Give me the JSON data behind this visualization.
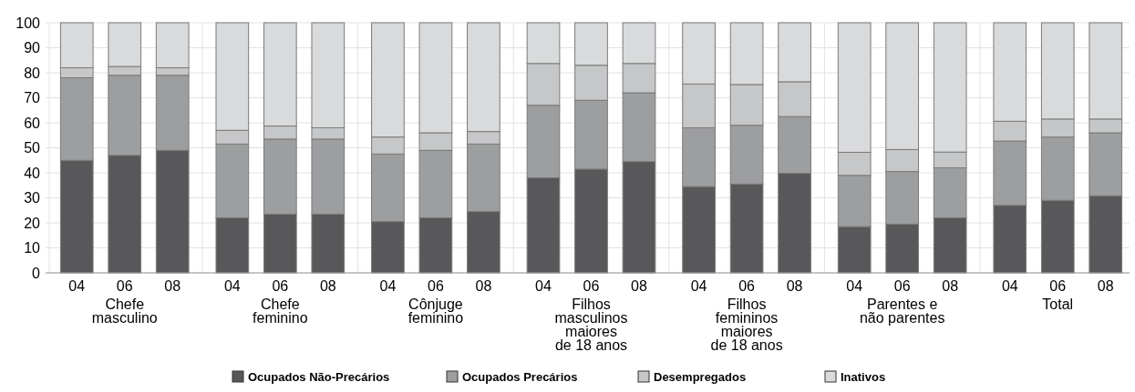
{
  "chart_data": {
    "type": "bar",
    "stacked": true,
    "categories": [
      "04",
      "06",
      "08",
      "04",
      "06",
      "08",
      "04",
      "06",
      "08",
      "04",
      "06",
      "08",
      "04",
      "06",
      "08",
      "04",
      "06",
      "08",
      "04",
      "06",
      "08"
    ],
    "annotations": [
      "Chefe\nmasculino",
      "Chefe\nfeminino",
      "Cônjuge\nfeminino",
      "Filhos\nmasculinos\nmaiores\nde 18 anos",
      "Filhos\nfemininos\nmaiores\nde 18 anos",
      "Parentes e\nnão parentes",
      "Total"
    ],
    "series": [
      {
        "name": "Ocupados Não-Precários",
        "color": "#58585a",
        "values": [
          45,
          47,
          49,
          22,
          23.5,
          23.5,
          20.5,
          22,
          24.5,
          38,
          41.5,
          44.5,
          34.5,
          35.5,
          39.8,
          18.5,
          19.5,
          22,
          27,
          29,
          30.8
        ]
      },
      {
        "name": "Ocupados Precários",
        "color": "#9d9ea0",
        "values": [
          33,
          32,
          30,
          29.5,
          30,
          30,
          27,
          27,
          27,
          29,
          27.5,
          27.5,
          23.5,
          23.5,
          22.7,
          20.5,
          21,
          20,
          25.7,
          25.3,
          25.2
        ]
      },
      {
        "name": "Desempregados",
        "color": "#c6c7c9",
        "values": [
          4,
          3.5,
          3,
          5.5,
          5.2,
          4.5,
          6.8,
          7,
          5,
          16.7,
          14,
          11.7,
          17.5,
          16.3,
          13.9,
          9.2,
          8.8,
          6.3,
          7.9,
          7.2,
          5.5
        ]
      },
      {
        "name": "Inativos",
        "color": "#d9dadc",
        "values": [
          18,
          17.5,
          18,
          43,
          41.3,
          42,
          45.7,
          44,
          43.5,
          16.3,
          17,
          16.3,
          24.5,
          24.7,
          23.6,
          51.8,
          50.7,
          51.7,
          39.4,
          38.5,
          38.5
        ]
      }
    ],
    "ylim": [
      0,
      100
    ],
    "yticks": [
      0,
      10,
      20,
      30,
      40,
      50,
      60,
      70,
      80,
      90,
      100
    ],
    "grid": true,
    "legend": "bottom"
  }
}
